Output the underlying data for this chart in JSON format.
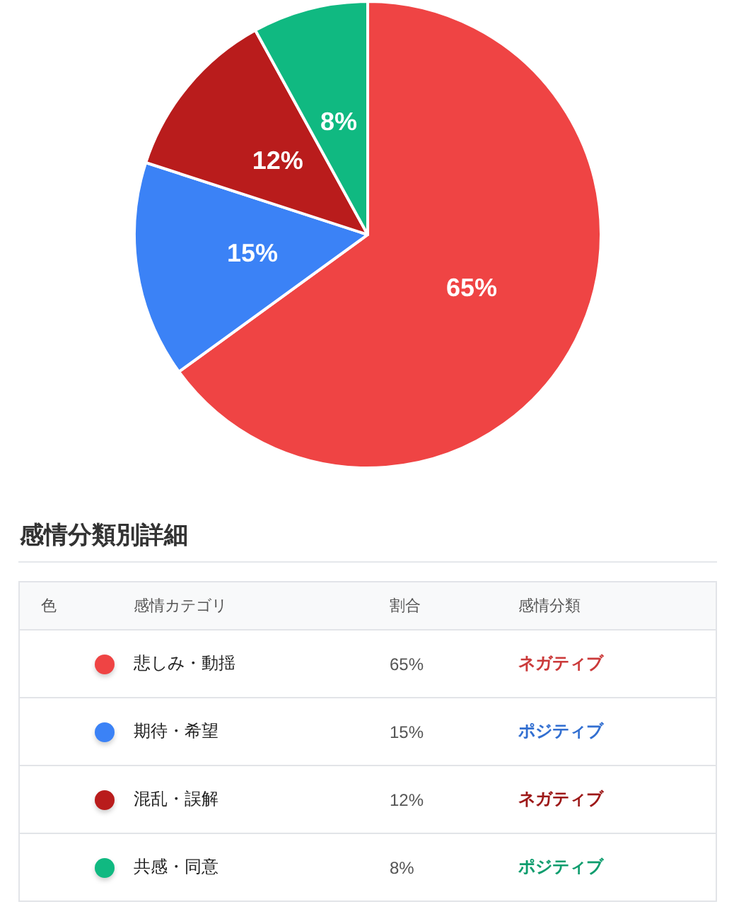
{
  "chart_data": {
    "type": "pie",
    "categories": [
      "悲しみ・動揺",
      "期待・希望",
      "混乱・誤解",
      "共感・同意"
    ],
    "values": [
      65,
      15,
      12,
      8
    ],
    "colors": [
      "#ef4444",
      "#3b82f6",
      "#b91c1c",
      "#10b981"
    ],
    "value_labels": [
      "65%",
      "15%",
      "12%",
      "8%"
    ],
    "legend": "bottom",
    "legend_title": "感情分類別詳細",
    "annotations": [
      "色",
      "感情カテゴリ",
      "割合",
      "感情分類",
      "ネガティブ",
      "ポジティブ",
      "ネガティブ",
      "ポジティブ"
    ]
  }
}
